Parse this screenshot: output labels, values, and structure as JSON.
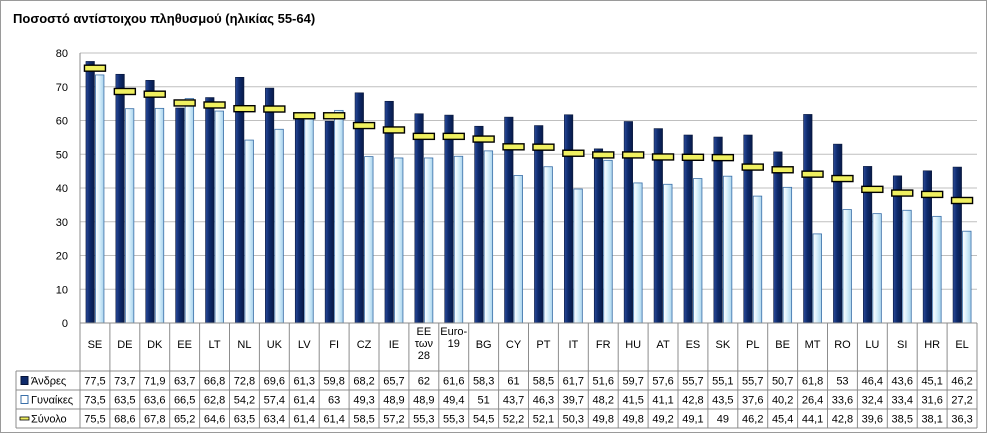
{
  "chart_data": {
    "type": "bar",
    "title": "Ποσοστό αντίστοιχου πληθυσμού (ηλικίας 55-64)",
    "xlabel": "",
    "ylabel": "",
    "ylim": [
      0,
      80
    ],
    "yticks": [
      0,
      10,
      20,
      30,
      40,
      50,
      60,
      70,
      80
    ],
    "grid": true,
    "legend": "data-table-left",
    "categories": [
      [
        "SE"
      ],
      [
        "DE"
      ],
      [
        "DK"
      ],
      [
        "EE"
      ],
      [
        "LT"
      ],
      [
        "NL"
      ],
      [
        "UK"
      ],
      [
        "LV"
      ],
      [
        "FI"
      ],
      [
        "CZ"
      ],
      [
        "IE"
      ],
      [
        "EE",
        "των",
        "28"
      ],
      [
        "Euro-",
        "19"
      ],
      [
        "BG"
      ],
      [
        "CY"
      ],
      [
        "PT"
      ],
      [
        "IT"
      ],
      [
        "FR"
      ],
      [
        "HU"
      ],
      [
        "AT"
      ],
      [
        "ES"
      ],
      [
        "SK"
      ],
      [
        "PL"
      ],
      [
        "BE"
      ],
      [
        "MT"
      ],
      [
        "RO"
      ],
      [
        "LU"
      ],
      [
        "SI"
      ],
      [
        "HR"
      ],
      [
        "EL"
      ]
    ],
    "series": [
      {
        "name": "Άνδρες",
        "kind": "bar",
        "color": "#0e2a6b",
        "values": [
          77.5,
          73.7,
          71.9,
          63.7,
          66.8,
          72.8,
          69.6,
          61.3,
          59.8,
          68.2,
          65.7,
          62,
          61.6,
          58.3,
          61,
          58.5,
          61.7,
          51.6,
          59.7,
          57.6,
          55.7,
          55.1,
          55.7,
          50.7,
          61.8,
          53,
          46.4,
          43.6,
          45.1,
          46.2
        ]
      },
      {
        "name": "Γυναίκες",
        "kind": "bar",
        "color": "#cfeaf8",
        "values": [
          73.5,
          63.5,
          63.6,
          66.5,
          62.8,
          54.2,
          57.4,
          61.4,
          63,
          49.3,
          48.9,
          48.9,
          49.4,
          51,
          43.7,
          46.3,
          39.7,
          48.2,
          41.5,
          41.1,
          42.8,
          43.5,
          37.6,
          40.2,
          26.4,
          33.6,
          32.4,
          33.4,
          31.6,
          27.2
        ]
      },
      {
        "name": "Σύνολο",
        "kind": "marker",
        "color": "#f0f060",
        "values": [
          75.5,
          68.6,
          67.8,
          65.2,
          64.6,
          63.5,
          63.4,
          61.4,
          61.4,
          58.5,
          57.2,
          55.3,
          55.3,
          54.5,
          52.2,
          52.1,
          50.3,
          49.8,
          49.8,
          49.2,
          49.1,
          49,
          46.2,
          45.4,
          44.1,
          42.8,
          39.6,
          38.5,
          38.1,
          36.3
        ]
      }
    ],
    "table_values": [
      [
        "77,5",
        "73,7",
        "71,9",
        "63,7",
        "66,8",
        "72,8",
        "69,6",
        "61,3",
        "59,8",
        "68,2",
        "65,7",
        "62",
        "61,6",
        "58,3",
        "61",
        "58,5",
        "61,7",
        "51,6",
        "59,7",
        "57,6",
        "55,7",
        "55,1",
        "55,7",
        "50,7",
        "61,8",
        "53",
        "46,4",
        "43,6",
        "45,1",
        "46,2"
      ],
      [
        "73,5",
        "63,5",
        "63,6",
        "66,5",
        "62,8",
        "54,2",
        "57,4",
        "61,4",
        "63",
        "49,3",
        "48,9",
        "48,9",
        "49,4",
        "51",
        "43,7",
        "46,3",
        "39,7",
        "48,2",
        "41,5",
        "41,1",
        "42,8",
        "43,5",
        "37,6",
        "40,2",
        "26,4",
        "33,6",
        "32,4",
        "33,4",
        "31,6",
        "27,2"
      ],
      [
        "75,5",
        "68,6",
        "67,8",
        "65,2",
        "64,6",
        "63,5",
        "63,4",
        "61,4",
        "61,4",
        "58,5",
        "57,2",
        "55,3",
        "55,3",
        "54,5",
        "52,2",
        "52,1",
        "50,3",
        "49,8",
        "49,8",
        "49,2",
        "49,1",
        "49",
        "46,2",
        "45,4",
        "44,1",
        "42,8",
        "39,6",
        "38,5",
        "38,1",
        "36,3"
      ]
    ]
  }
}
